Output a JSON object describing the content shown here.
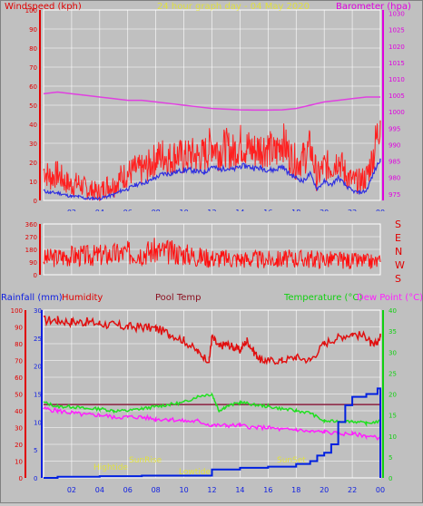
{
  "header": {
    "windspeed_label": "Windspeed (kph)",
    "title": "24 hour graph day - 04 May 2020",
    "barometer_label": "Barometer (hpa)"
  },
  "direction_labels": [
    "S",
    "E",
    "N",
    "W",
    "S"
  ],
  "lower_header": {
    "rainfall_label": "Rainfall (mm)",
    "humidity_label": "Humidity",
    "pool_label": "Pool Temp",
    "temperature_label": "Temperature (°C)",
    "dewpoint_label": "Dew Point (°C)"
  },
  "annotations": {
    "hightide": "Hightide",
    "sunrise": "SunRise",
    "lowtide": "Lowtide",
    "sunset": "SunSet"
  },
  "colors": {
    "background": "#c0c0c0",
    "grid": "#ffffff",
    "wind": "#ff2020",
    "wind_avg": "#3030e0",
    "barometer": "#e040e0",
    "direction": "#ff1010",
    "humidity": "#e01010",
    "pool": "#8b2040",
    "temperature": "#20e020",
    "dewpoint": "#ff20ff",
    "rainfall": "#0020e0",
    "annotation": "#e0e040"
  },
  "chart_data": [
    {
      "type": "line",
      "name": "wind-barometer",
      "title": "24 hour graph day - 04 May 2020",
      "x_tick_labels": [
        "02",
        "04",
        "06",
        "08",
        "10",
        "12",
        "14",
        "16",
        "18",
        "20",
        "22",
        "00"
      ],
      "x_range_hours": [
        0,
        24
      ],
      "left_axis": {
        "label": "Windspeed (kph)",
        "ticks": [
          0,
          10,
          20,
          30,
          40,
          50,
          60,
          70,
          80,
          90,
          100
        ],
        "range": [
          0,
          100
        ]
      },
      "right_axis": {
        "label": "Barometer (hpa)",
        "ticks": [
          975,
          980,
          985,
          990,
          995,
          1000,
          1005,
          1010,
          1015,
          1020,
          1025,
          1030
        ],
        "range": [
          973,
          1031
        ]
      },
      "series": [
        {
          "axis": "left",
          "role": "gust",
          "x": [
            0,
            0.5,
            1,
            1.5,
            2,
            2.5,
            3,
            3.5,
            4,
            4.5,
            5,
            5.5,
            6,
            6.5,
            7,
            7.5,
            8,
            8.5,
            9,
            9.5,
            10,
            10.5,
            11,
            11.5,
            12,
            12.5,
            13,
            13.5,
            14,
            14.5,
            15,
            15.5,
            16,
            16.5,
            17,
            17.5,
            18,
            18.5,
            19,
            19.5,
            20,
            20.5,
            21,
            21.5,
            22,
            22.5,
            23,
            23.5,
            24
          ],
          "values": [
            16,
            12,
            14,
            10,
            8,
            9,
            6,
            5,
            4,
            8,
            8,
            12,
            14,
            16,
            16,
            18,
            22,
            24,
            22,
            24,
            22,
            24,
            23,
            24,
            30,
            26,
            28,
            25,
            30,
            28,
            26,
            28,
            28,
            24,
            32,
            24,
            20,
            22,
            28,
            12,
            18,
            18,
            22,
            14,
            10,
            10,
            12,
            24,
            42
          ]
        },
        {
          "axis": "left",
          "role": "average",
          "x": [
            0,
            0.5,
            1,
            1.5,
            2,
            2.5,
            3,
            3.5,
            4,
            4.5,
            5,
            5.5,
            6,
            6.5,
            7,
            7.5,
            8,
            8.5,
            9,
            9.5,
            10,
            10.5,
            11,
            11.5,
            12,
            12.5,
            13,
            13.5,
            14,
            14.5,
            15,
            15.5,
            16,
            16.5,
            17,
            17.5,
            18,
            18.5,
            19,
            19.5,
            20,
            20.5,
            21,
            21.5,
            22,
            22.5,
            23,
            23.5,
            24
          ],
          "values": [
            5,
            4,
            4,
            3,
            2,
            2,
            1,
            1,
            1,
            2,
            3,
            5,
            6,
            8,
            9,
            10,
            12,
            14,
            14,
            15,
            16,
            16,
            15,
            15,
            18,
            16,
            17,
            16,
            18,
            18,
            17,
            17,
            16,
            16,
            18,
            14,
            12,
            10,
            14,
            6,
            10,
            8,
            12,
            8,
            5,
            4,
            5,
            14,
            22
          ]
        },
        {
          "axis": "right",
          "role": "barometer",
          "x": [
            0,
            1,
            2,
            3,
            4,
            5,
            6,
            7,
            8,
            9,
            10,
            11,
            12,
            13,
            14,
            15,
            16,
            17,
            18,
            19,
            20,
            21,
            22,
            23,
            24
          ],
          "values": [
            1005.5,
            1006,
            1005.5,
            1005,
            1004.5,
            1004,
            1003.5,
            1003.5,
            1003,
            1002.5,
            1002,
            1001.5,
            1001,
            1000.8,
            1000.6,
            1000.5,
            1000.5,
            1000.6,
            1001,
            1002,
            1003,
            1003.5,
            1004,
            1004.5,
            1004.5
          ]
        }
      ]
    },
    {
      "type": "scatter",
      "name": "wind-direction",
      "y_ticks": [
        0,
        90,
        180,
        270,
        360
      ],
      "y_range": [
        0,
        360
      ],
      "x_range_hours": [
        0,
        24
      ],
      "series": [
        {
          "role": "direction",
          "x": [
            0,
            1,
            2,
            3,
            4,
            5,
            6,
            7,
            8,
            9,
            10,
            11,
            12,
            13,
            14,
            15,
            16,
            17,
            18,
            19,
            20,
            21,
            22,
            23,
            24
          ],
          "values": [
            115,
            125,
            135,
            135,
            140,
            145,
            155,
            160,
            170,
            160,
            150,
            130,
            120,
            115,
            112,
            110,
            108,
            110,
            115,
            112,
            110,
            105,
            100,
            95,
            90
          ]
        }
      ]
    },
    {
      "type": "line",
      "name": "rain-temp-humidity",
      "x_tick_labels": [
        "02",
        "04",
        "06",
        "08",
        "10",
        "12",
        "14",
        "16",
        "18",
        "20",
        "22",
        "00"
      ],
      "x_range_hours": [
        0,
        24
      ],
      "left_axis_rain": {
        "label": "Rainfall (mm)",
        "ticks": [
          0,
          5,
          10,
          15,
          20,
          25,
          30
        ],
        "range": [
          0,
          30
        ]
      },
      "left_axis_humidity": {
        "label": "Humidity",
        "ticks": [
          0,
          10,
          20,
          30,
          40,
          50,
          60,
          70,
          80,
          90,
          100
        ],
        "range": [
          0,
          100
        ]
      },
      "right_axis": {
        "label": "Temperature (°C)",
        "ticks": [
          0,
          5,
          10,
          15,
          20,
          25,
          30,
          35,
          40
        ],
        "range": [
          0,
          40
        ]
      },
      "series": [
        {
          "axis": "humidity",
          "role": "humidity",
          "x": [
            0,
            1,
            2,
            3,
            4,
            5,
            6,
            7,
            8,
            9,
            10,
            11,
            11.8,
            12,
            12.5,
            13,
            13.5,
            14,
            14.5,
            15,
            15.5,
            16,
            17,
            18,
            19,
            20,
            21,
            22,
            23,
            23.5,
            24
          ],
          "values": [
            94,
            94,
            93,
            93,
            92,
            91,
            90,
            90,
            89,
            86,
            82,
            75,
            70,
            84,
            78,
            80,
            78,
            76,
            82,
            75,
            70,
            70,
            70,
            72,
            70,
            80,
            84,
            86,
            84,
            78,
            84
          ]
        },
        {
          "axis": "right",
          "role": "pool",
          "x": [
            0,
            4,
            8,
            12,
            16,
            20,
            24
          ],
          "values": [
            17.5,
            17.5,
            17.5,
            17.5,
            17.5,
            17.5,
            17.5
          ]
        },
        {
          "axis": "right",
          "role": "temperature",
          "x": [
            0,
            1,
            2,
            3,
            4,
            5,
            6,
            7,
            8,
            9,
            10,
            11,
            12,
            12.5,
            13,
            14,
            15,
            16,
            17,
            18,
            19,
            20,
            21,
            22,
            23,
            24
          ],
          "values": [
            18,
            17,
            17,
            16.5,
            16.5,
            16,
            16,
            16.5,
            17,
            17.5,
            18,
            19.5,
            20,
            16,
            17,
            18,
            17.5,
            17,
            16.5,
            16,
            15.5,
            13.5,
            13.5,
            13.5,
            13,
            13.5
          ]
        },
        {
          "axis": "right",
          "role": "dewpoint",
          "x": [
            0,
            1,
            2,
            3,
            4,
            5,
            6,
            7,
            8,
            9,
            10,
            11,
            12,
            13,
            14,
            15,
            16,
            17,
            18,
            19,
            20,
            21,
            22,
            23,
            24
          ],
          "values": [
            16.5,
            16,
            15.5,
            15,
            15,
            14.5,
            14.5,
            14.5,
            14,
            14,
            13.5,
            13.5,
            12.5,
            12.5,
            12.5,
            12,
            12,
            11.5,
            11.5,
            11,
            11,
            10.5,
            10.5,
            10,
            9.5
          ]
        },
        {
          "axis": "rain",
          "role": "rainfall",
          "x": [
            0,
            1,
            2,
            3,
            4,
            5,
            6,
            7,
            8,
            9,
            10,
            11,
            11.9,
            12,
            14,
            15,
            16,
            17,
            18,
            19,
            19.5,
            20,
            20.5,
            21,
            21.5,
            22,
            23,
            23.8,
            24
          ],
          "values": [
            0,
            0.2,
            0.2,
            0.2,
            0.3,
            0.3,
            0.3,
            0.4,
            0.4,
            0.4,
            0.4,
            0.4,
            0.4,
            1.5,
            1.8,
            1.8,
            2,
            2,
            2.5,
            3,
            4,
            4.5,
            6,
            10,
            13,
            14.5,
            15,
            16,
            0
          ]
        }
      ]
    }
  ]
}
